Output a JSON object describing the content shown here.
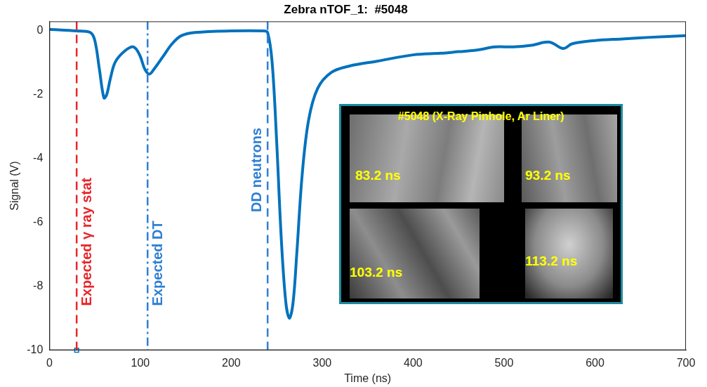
{
  "chart_data": {
    "type": "line",
    "title": "Zebra nTOF_1:  #5048",
    "x_label": "Time (ns)",
    "y_label": "Signal (V)",
    "xlim": [
      0,
      700
    ],
    "ylim": [
      -10,
      0.3
    ],
    "xticks": [
      0,
      100,
      200,
      300,
      400,
      500,
      600,
      700
    ],
    "yticks": [
      -10,
      -8,
      -6,
      -4,
      -2,
      0
    ],
    "grid": false,
    "series": [
      {
        "color": "#0072bd",
        "line_style": "solid",
        "x": [
          0,
          30,
          45,
          50,
          55,
          60,
          63,
          67,
          72,
          80,
          90,
          95,
          100,
          105,
          110,
          115,
          125,
          135,
          145,
          160,
          200,
          235,
          240,
          245,
          250,
          255,
          260,
          264,
          268,
          272,
          278,
          285,
          295,
          310,
          330,
          360,
          400,
          430,
          450,
          470,
          490,
          510,
          530,
          550,
          565,
          575,
          600,
          630,
          660,
          700
        ],
        "values": [
          0.05,
          0,
          -0.05,
          -0.3,
          -1.2,
          -2.1,
          -2.0,
          -1.5,
          -1.0,
          -0.7,
          -0.5,
          -0.55,
          -0.8,
          -1.2,
          -1.35,
          -1.2,
          -0.8,
          -0.4,
          -0.15,
          -0.05,
          0,
          0,
          -0.05,
          -1.0,
          -3.5,
          -6.5,
          -8.5,
          -9.0,
          -8.5,
          -7.0,
          -4.5,
          -2.8,
          -1.8,
          -1.3,
          -1.1,
          -0.95,
          -0.75,
          -0.7,
          -0.65,
          -0.6,
          -0.5,
          -0.5,
          -0.45,
          -0.35,
          -0.55,
          -0.4,
          -0.3,
          -0.25,
          -0.2,
          -0.15
        ]
      },
      {
        "type": "scatter",
        "marker": "square",
        "color": "#0072bd",
        "x": [
          30
        ],
        "values": [
          -10
        ]
      }
    ],
    "vlines": [
      {
        "x": 30,
        "label": "Expected γ ray stat",
        "color": "#e8262b",
        "line_style": "dashed"
      },
      {
        "x": 108,
        "label": "Expected DT",
        "color": "#2f7fd3",
        "line_style": "dashdot"
      },
      {
        "x": 240,
        "label": "DD neutrons",
        "color": "#2f7fd3",
        "line_style": "dashed"
      }
    ],
    "inset": {
      "title": "#5048 (X-Ray Pinhole, Ar Liner)",
      "frames": [
        "83.2 ns",
        "93.2 ns",
        "103.2 ns",
        "113.2 ns"
      ]
    }
  }
}
